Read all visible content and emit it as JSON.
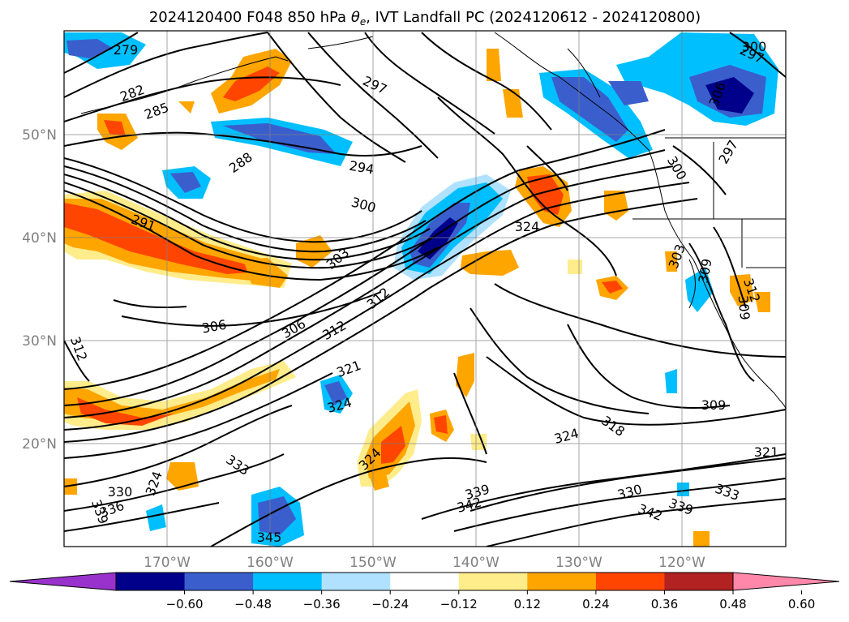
{
  "title_main": "2024120400 F048 850 hPa ",
  "title_theta": "θ",
  "title_sub": "e",
  "title_rest": ", IVT Landfall PC (2024120612 - 2024120800)",
  "lon_labels": [
    "170°W",
    "160°W",
    "150°W",
    "140°W",
    "130°W",
    "120°W"
  ],
  "lat_labels": [
    "50°N",
    "40°N",
    "30°N",
    "20°N"
  ],
  "colorbar": {
    "colors": [
      "#9932cc",
      "#00008b",
      "#3a5fcd",
      "#00bfff",
      "#b0e2ff",
      "#ffffff",
      "#ffec8b",
      "#ffa500",
      "#ff4500",
      "#b22222",
      "#ff88aa"
    ],
    "tick_labels": [
      "−0.60",
      "−0.48",
      "−0.36",
      "−0.24",
      "−0.12",
      "0.12",
      "0.24",
      "0.36",
      "0.48",
      "0.60"
    ]
  },
  "contour_labels": [
    "279",
    "282",
    "285",
    "288",
    "291",
    "294",
    "297",
    "297",
    "300",
    "300",
    "300",
    "303",
    "306",
    "306",
    "306",
    "309",
    "309",
    "309",
    "312",
    "312",
    "312",
    "312",
    "318",
    "321",
    "321",
    "324",
    "324",
    "324",
    "324",
    "324",
    "330",
    "330",
    "333",
    "333",
    "336",
    "339",
    "339",
    "339",
    "342",
    "342",
    "345",
    "303",
    "297"
  ]
}
